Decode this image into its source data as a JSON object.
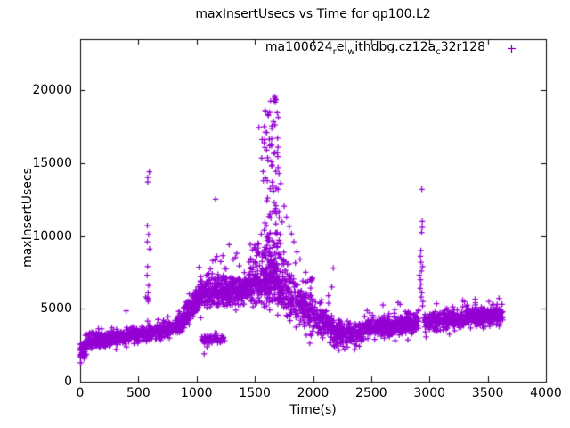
{
  "chart_data": {
    "type": "scatter",
    "title": "maxInsertUsecs vs Time for qp100.L2",
    "xlabel": "Time(s)",
    "ylabel": "maxInsertUsecs",
    "xlim": [
      0,
      4000
    ],
    "ylim": [
      0,
      23500
    ],
    "xticks": [
      0,
      500,
      1000,
      1500,
      2000,
      2500,
      3000,
      3500,
      4000
    ],
    "yticks": [
      0,
      5000,
      10000,
      15000,
      20000
    ],
    "grid": false,
    "legend_position": "top-right-inside",
    "series_name": "ma100624_rel_withdbg.cz12a_c32r128",
    "legend_segments": [
      {
        "t": "ma100624"
      },
      {
        "t": "r",
        "sub": true
      },
      {
        "t": "el"
      },
      {
        "t": "w",
        "sub": true
      },
      {
        "t": "ithdbg.cz12a"
      },
      {
        "t": "c",
        "sub": true
      },
      {
        "t": "32r128"
      }
    ],
    "marker": "plus",
    "color": "#9400D3",
    "axis_color": "#000000",
    "background": "#ffffff",
    "seed": 42,
    "bands": [
      {
        "t0": 0,
        "t1": 60,
        "c0": 1900,
        "c1": 2500,
        "sd": 380,
        "n": 70,
        "vmin": 1300
      },
      {
        "t0": 60,
        "t1": 400,
        "c0": 2750,
        "c1": 3050,
        "sd": 260,
        "n": 300,
        "tail_p": 0.03,
        "tail": 700
      },
      {
        "t0": 400,
        "t1": 700,
        "c0": 3150,
        "c1": 3450,
        "sd": 260,
        "n": 240,
        "tail_p": 0.02,
        "tail": 600
      },
      {
        "t0": 700,
        "t1": 880,
        "c0": 3450,
        "c1": 3950,
        "sd": 280,
        "n": 160,
        "tail_p": 0.02,
        "tail": 600
      },
      {
        "t0": 880,
        "t1": 1010,
        "c0": 4300,
        "c1": 5700,
        "sd": 420,
        "n": 140,
        "tail_p": 0.04,
        "tail": 700
      },
      {
        "t0": 1010,
        "t1": 1450,
        "c0": 6050,
        "c1": 6350,
        "sd": 480,
        "n": 430,
        "tail_p": 0.05,
        "tail": 2000
      },
      {
        "t0": 1042,
        "t1": 1250,
        "c0": 2850,
        "c1": 2950,
        "sd": 220,
        "n": 60
      },
      {
        "t0": 1450,
        "t1": 1560,
        "c0": 6600,
        "c1": 7000,
        "sd": 650,
        "n": 110,
        "tail_p": 0.08,
        "tail": 3000
      },
      {
        "t0": 1560,
        "t1": 1800,
        "c0": 6900,
        "c1": 6300,
        "sd": 850,
        "n": 230,
        "tail_p": 0.1,
        "tail": 2800
      },
      {
        "t0": 1800,
        "t1": 2000,
        "c0": 5900,
        "c1": 4700,
        "sd": 750,
        "n": 170,
        "tail_p": 0.05,
        "tail": 2000
      },
      {
        "t0": 2000,
        "t1": 2160,
        "c0": 4400,
        "c1": 3800,
        "sd": 520,
        "n": 130
      },
      {
        "t0": 2160,
        "t1": 2440,
        "c0": 3250,
        "c1": 3350,
        "sd": 430,
        "n": 200,
        "vmin": 2050
      },
      {
        "t0": 2440,
        "t1": 2910,
        "c0": 3650,
        "c1": 4050,
        "sd": 340,
        "n": 380,
        "tail_p": 0.02,
        "tail": 800
      },
      {
        "t0": 2950,
        "t1": 3310,
        "c0": 4100,
        "c1": 4300,
        "sd": 310,
        "n": 300,
        "tail_p": 0.02,
        "tail": 600
      },
      {
        "t0": 3310,
        "t1": 3630,
        "c0": 4400,
        "c1": 4600,
        "sd": 310,
        "n": 280,
        "tail_p": 0.02,
        "tail": 700
      }
    ],
    "spikes": [
      {
        "t": 585,
        "sd_t": 6,
        "values": [
          5500,
          5700,
          6100,
          6600,
          7300,
          7900,
          9100,
          9600,
          10100,
          10700,
          13700,
          14000,
          14400
        ]
      },
      {
        "t": 2167,
        "sd_t": 8,
        "values": [
          7800,
          6500
        ]
      },
      {
        "t": 2930,
        "sd_t": 7,
        "values": [
          4900,
          5200,
          5500,
          5800,
          6100,
          6400,
          6700,
          7000,
          7300,
          7600,
          7900,
          8200,
          8600,
          9000,
          10250,
          10600,
          11000,
          13200
        ]
      },
      {
        "t": 1642,
        "sd_t": 48,
        "n": 130,
        "vbase": 6800,
        "vmax": 19600,
        "pow": 2.2
      }
    ],
    "outliers": [
      [
        395,
        4850
      ],
      [
        563,
        5800
      ],
      [
        577,
        5720
      ],
      [
        1065,
        1900
      ],
      [
        1163,
        12520
      ],
      [
        1280,
        9400
      ],
      [
        1345,
        8800
      ],
      [
        1670,
        19570
      ],
      [
        1592,
        18520
      ],
      [
        1628,
        18480
      ],
      [
        1660,
        17850
      ],
      [
        1602,
        17100
      ],
      [
        1580,
        16400
      ],
      [
        1698,
        15450
      ],
      [
        1612,
        15200
      ],
      [
        1645,
        14800
      ],
      [
        1700,
        14700
      ],
      [
        1722,
        13600
      ],
      [
        1752,
        12050
      ],
      [
        1772,
        11300
      ],
      [
        1795,
        10650
      ],
      [
        1815,
        10150
      ],
      [
        1835,
        9600
      ],
      [
        1862,
        8900
      ],
      [
        1888,
        8400
      ],
      [
        2600,
        5250
      ],
      [
        2730,
        5420
      ],
      [
        2748,
        5300
      ],
      [
        3060,
        5350
      ],
      [
        3285,
        5580
      ],
      [
        3300,
        5480
      ],
      [
        3392,
        5660
      ],
      [
        3510,
        5500
      ],
      [
        3597,
        5720
      ]
    ]
  }
}
